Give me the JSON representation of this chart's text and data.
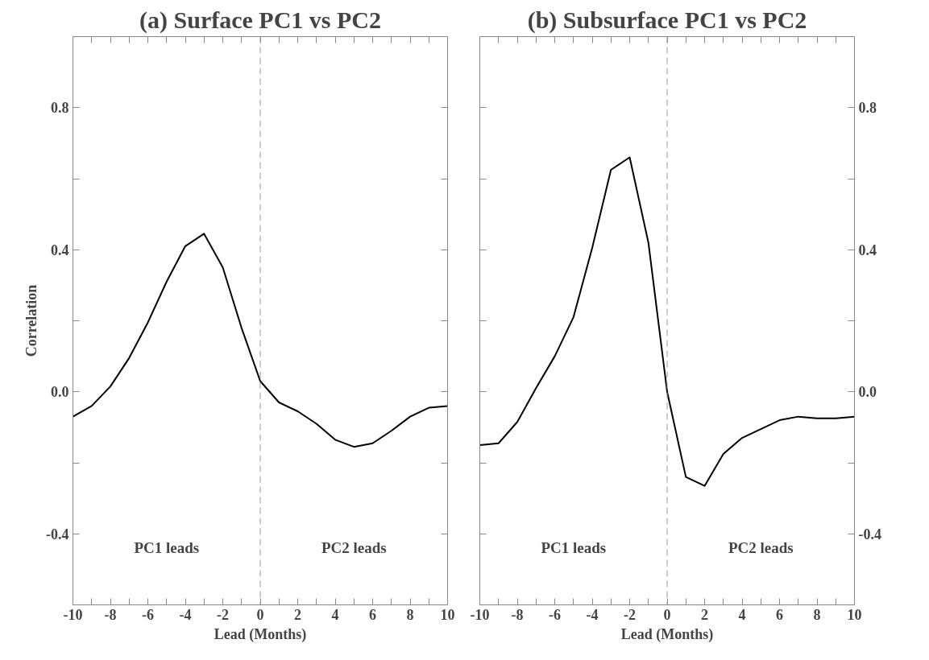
{
  "chart_data": [
    {
      "type": "line",
      "title": "(a) Surface PC1 vs PC2",
      "xlabel": "Lead (Months)",
      "ylabel": "Correlation",
      "x": [
        -10,
        -9,
        -8,
        -7,
        -6,
        -5,
        -4,
        -3,
        -2,
        -1,
        0,
        1,
        2,
        3,
        4,
        5,
        6,
        7,
        8,
        9,
        10
      ],
      "series": [
        {
          "color": "#000000",
          "values": [
            -0.07,
            -0.04,
            0.015,
            0.095,
            0.195,
            0.31,
            0.41,
            0.445,
            0.35,
            0.18,
            0.03,
            -0.03,
            -0.055,
            -0.09,
            -0.135,
            -0.155,
            -0.145,
            -0.11,
            -0.07,
            -0.045,
            -0.04
          ]
        }
      ],
      "xlim": [
        -10,
        10
      ],
      "ylim": [
        -0.6,
        1.0
      ],
      "xticks": [
        -10,
        {
          "value": -9,
          "label": null
        },
        -8,
        {
          "value": -7,
          "label": null
        },
        -6,
        {
          "value": -5,
          "label": null
        },
        -4,
        {
          "value": -3,
          "label": null
        },
        -2,
        {
          "value": -1,
          "label": null
        },
        0,
        {
          "value": 1,
          "label": null
        },
        2,
        {
          "value": 3,
          "label": null
        },
        4,
        {
          "value": 5,
          "label": null
        },
        6,
        {
          "value": 7,
          "label": null
        },
        8,
        {
          "value": 9,
          "label": null
        },
        10
      ],
      "yticks": [
        {
          "value": -0.6,
          "label": null
        },
        -0.4,
        {
          "value": -0.2,
          "label": null
        },
        {
          "value": 0.0,
          "label": "0.0"
        },
        {
          "value": 0.2,
          "label": null
        },
        0.4,
        {
          "value": 0.6,
          "label": null
        },
        0.8,
        {
          "value": 1.0,
          "label": null
        }
      ],
      "ref_lines": [
        {
          "axis": "x",
          "value": 0,
          "color": "#999999",
          "line_style": "dashed"
        }
      ],
      "annotations": [
        "PC1 leads",
        "PC2 leads"
      ],
      "grid": false,
      "marker": "none",
      "line_style": "solid"
    },
    {
      "type": "line",
      "title": "(b) Subsurface PC1 vs PC2",
      "xlabel": "Lead (Months)",
      "x": [
        -10,
        -9,
        -8,
        -7,
        -6,
        -5,
        -4,
        -3,
        -2,
        -1,
        0,
        1,
        2,
        3,
        4,
        5,
        6,
        7,
        8,
        9,
        10
      ],
      "series": [
        {
          "color": "#000000",
          "axis": "y2",
          "values": [
            -0.15,
            -0.145,
            -0.085,
            0.01,
            0.1,
            0.21,
            0.405,
            0.625,
            0.66,
            0.42,
            0.0,
            -0.24,
            -0.265,
            -0.175,
            -0.13,
            -0.105,
            -0.08,
            -0.07,
            -0.075,
            -0.075,
            -0.07
          ]
        }
      ],
      "xlim": [
        -10,
        10
      ],
      "y2lim": [
        -0.6,
        1.0
      ],
      "xticks": [
        -10,
        {
          "value": -9,
          "label": null
        },
        -8,
        {
          "value": -7,
          "label": null
        },
        -6,
        {
          "value": -5,
          "label": null
        },
        -4,
        {
          "value": -3,
          "label": null
        },
        -2,
        {
          "value": -1,
          "label": null
        },
        0,
        {
          "value": 1,
          "label": null
        },
        2,
        {
          "value": 3,
          "label": null
        },
        4,
        {
          "value": 5,
          "label": null
        },
        6,
        {
          "value": 7,
          "label": null
        },
        8,
        {
          "value": 9,
          "label": null
        },
        10
      ],
      "y2ticks": [
        {
          "value": -0.6,
          "label": null
        },
        -0.4,
        {
          "value": -0.2,
          "label": null
        },
        {
          "value": 0.0,
          "label": "0.0"
        },
        {
          "value": 0.2,
          "label": null
        },
        0.4,
        {
          "value": 0.6,
          "label": null
        },
        0.8,
        {
          "value": 1.0,
          "label": null
        }
      ],
      "ref_lines": [
        {
          "axis": "x",
          "value": 0,
          "color": "#999999",
          "line_style": "dashed"
        }
      ],
      "annotations": [
        "PC1 leads",
        "PC2 leads"
      ],
      "grid": false,
      "marker": "none",
      "line_style": "solid"
    }
  ]
}
